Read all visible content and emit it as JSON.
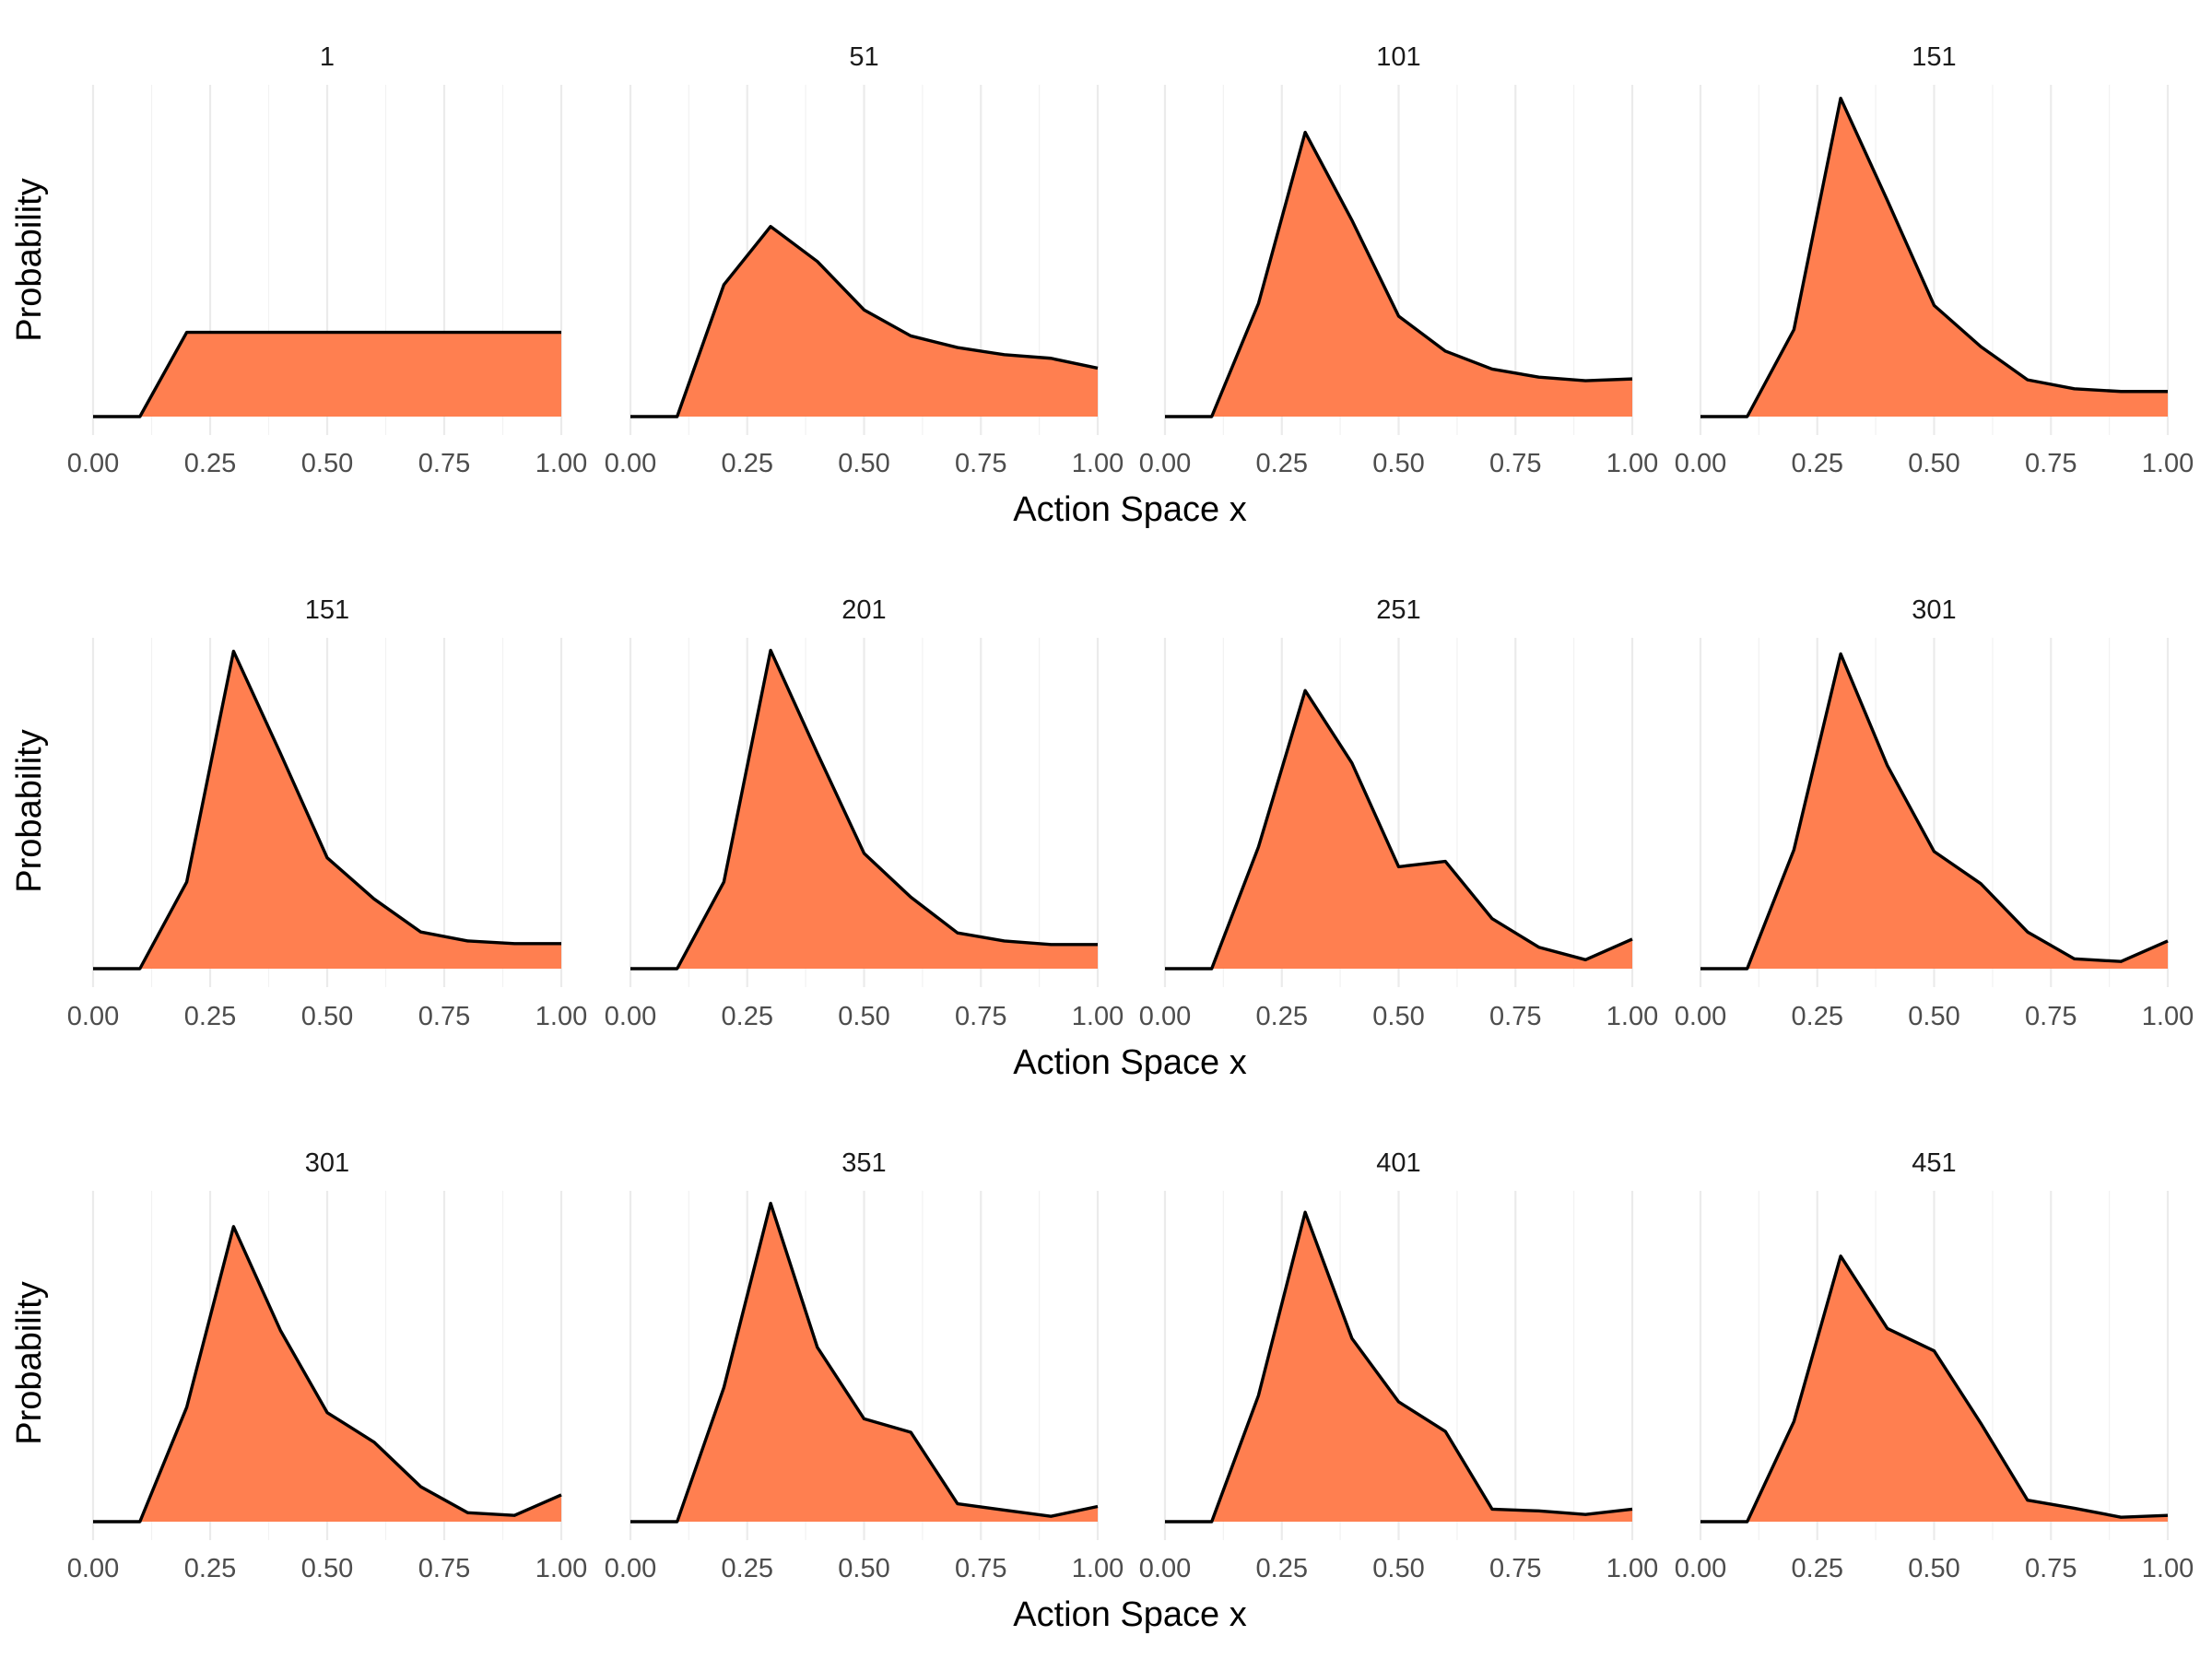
{
  "chart_data": {
    "type": "area",
    "xlabel": "Action Space x",
    "ylabel": "Probability",
    "xlim": [
      0,
      1
    ],
    "ylim": [
      0,
      0.37
    ],
    "x_ticks": [
      "0.00",
      "0.25",
      "0.50",
      "0.75",
      "1.00"
    ],
    "grid": true,
    "fill_color": "#FF7F50",
    "line_color": "#000000",
    "x": [
      0.0,
      0.1,
      0.2,
      0.3,
      0.4,
      0.5,
      0.6,
      0.7,
      0.8,
      0.9,
      1.0
    ],
    "rows": [
      {
        "panels": [
          {
            "title": "1",
            "values": [
              0,
              0,
              0.094,
              0.094,
              0.094,
              0.094,
              0.094,
              0.094,
              0.094,
              0.094,
              0.094
            ]
          },
          {
            "title": "51",
            "values": [
              0,
              0,
              0.147,
              0.212,
              0.173,
              0.119,
              0.09,
              0.077,
              0.069,
              0.065,
              0.054
            ]
          },
          {
            "title": "101",
            "values": [
              0,
              0,
              0.126,
              0.317,
              0.219,
              0.112,
              0.073,
              0.053,
              0.044,
              0.04,
              0.042
            ]
          },
          {
            "title": "151",
            "values": [
              0,
              0,
              0.097,
              0.355,
              0.241,
              0.124,
              0.078,
              0.041,
              0.031,
              0.028,
              0.028
            ]
          }
        ]
      },
      {
        "panels": [
          {
            "title": "151",
            "values": [
              0,
              0,
              0.097,
              0.355,
              0.241,
              0.124,
              0.078,
              0.041,
              0.031,
              0.028,
              0.028
            ]
          },
          {
            "title": "201",
            "values": [
              0,
              0,
              0.097,
              0.356,
              0.241,
              0.129,
              0.08,
              0.04,
              0.031,
              0.027,
              0.027
            ]
          },
          {
            "title": "251",
            "values": [
              0,
              0,
              0.136,
              0.311,
              0.23,
              0.114,
              0.12,
              0.056,
              0.024,
              0.01,
              0.033
            ]
          },
          {
            "title": "301",
            "values": [
              0,
              0,
              0.133,
              0.352,
              0.227,
              0.131,
              0.095,
              0.041,
              0.011,
              0.008,
              0.031
            ]
          }
        ]
      },
      {
        "panels": [
          {
            "title": "301",
            "values": [
              0,
              0,
              0.128,
              0.33,
              0.214,
              0.122,
              0.089,
              0.039,
              0.01,
              0.007,
              0.03
            ]
          },
          {
            "title": "351",
            "values": [
              0,
              0,
              0.15,
              0.356,
              0.195,
              0.115,
              0.1,
              0.02,
              0.013,
              0.006,
              0.017
            ]
          },
          {
            "title": "401",
            "values": [
              0,
              0,
              0.141,
              0.346,
              0.205,
              0.134,
              0.101,
              0.014,
              0.012,
              0.008,
              0.014
            ]
          },
          {
            "title": "451",
            "values": [
              0,
              0,
              0.112,
              0.297,
              0.216,
              0.191,
              0.11,
              0.024,
              0.015,
              0.005,
              0.007
            ]
          }
        ]
      }
    ]
  }
}
